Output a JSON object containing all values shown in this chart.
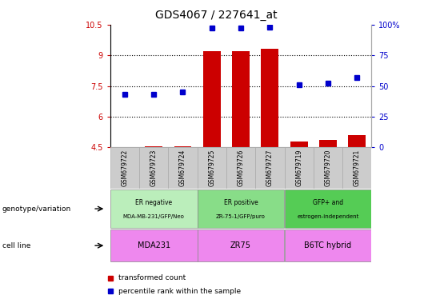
{
  "title": "GDS4067 / 227641_at",
  "samples": [
    "GSM679722",
    "GSM679723",
    "GSM679724",
    "GSM679725",
    "GSM679726",
    "GSM679727",
    "GSM679719",
    "GSM679720",
    "GSM679721"
  ],
  "transformed_count": [
    4.52,
    4.55,
    4.57,
    9.2,
    9.2,
    9.3,
    4.8,
    4.85,
    5.1
  ],
  "percentile_rank": [
    43,
    43,
    45,
    97,
    97,
    98,
    51,
    52,
    57
  ],
  "ylim_left": [
    4.5,
    10.5
  ],
  "ylim_right": [
    0,
    100
  ],
  "yticks_left": [
    4.5,
    6.0,
    7.5,
    9.0,
    10.5
  ],
  "yticks_right": [
    0,
    25,
    50,
    75,
    100
  ],
  "ytick_labels_left": [
    "4.5",
    "6",
    "7.5",
    "9",
    "10.5"
  ],
  "ytick_labels_right": [
    "0",
    "25",
    "50",
    "75",
    "100%"
  ],
  "hlines": [
    6.0,
    7.5,
    9.0
  ],
  "bar_color": "#cc0000",
  "dot_color": "#0000cc",
  "bar_width": 0.6,
  "group_colors": [
    "#bbeebb",
    "#88dd88",
    "#55cc55"
  ],
  "cell_line_color": "#ee88ee",
  "sample_box_color": "#cccccc",
  "groups": [
    {
      "label": "ER negative\nMDA-MB-231/GFP/Neo",
      "start": 0,
      "end": 3
    },
    {
      "label": "ER positive\nZR-75-1/GFP/puro",
      "start": 3,
      "end": 6
    },
    {
      "label": "GFP+ and\nestrogen-independent",
      "start": 6,
      "end": 9
    }
  ],
  "cell_lines": [
    {
      "label": "MDA231",
      "start": 0,
      "end": 3
    },
    {
      "label": "ZR75",
      "start": 3,
      "end": 6
    },
    {
      "label": "B6TC hybrid",
      "start": 6,
      "end": 9
    }
  ],
  "row_label_genotype": "genotype/variation",
  "row_label_cellline": "cell line",
  "legend_red": "transformed count",
  "legend_blue": "percentile rank within the sample",
  "plot_bg": "#ffffff",
  "tick_color_left": "#cc0000",
  "tick_color_right": "#0000cc"
}
